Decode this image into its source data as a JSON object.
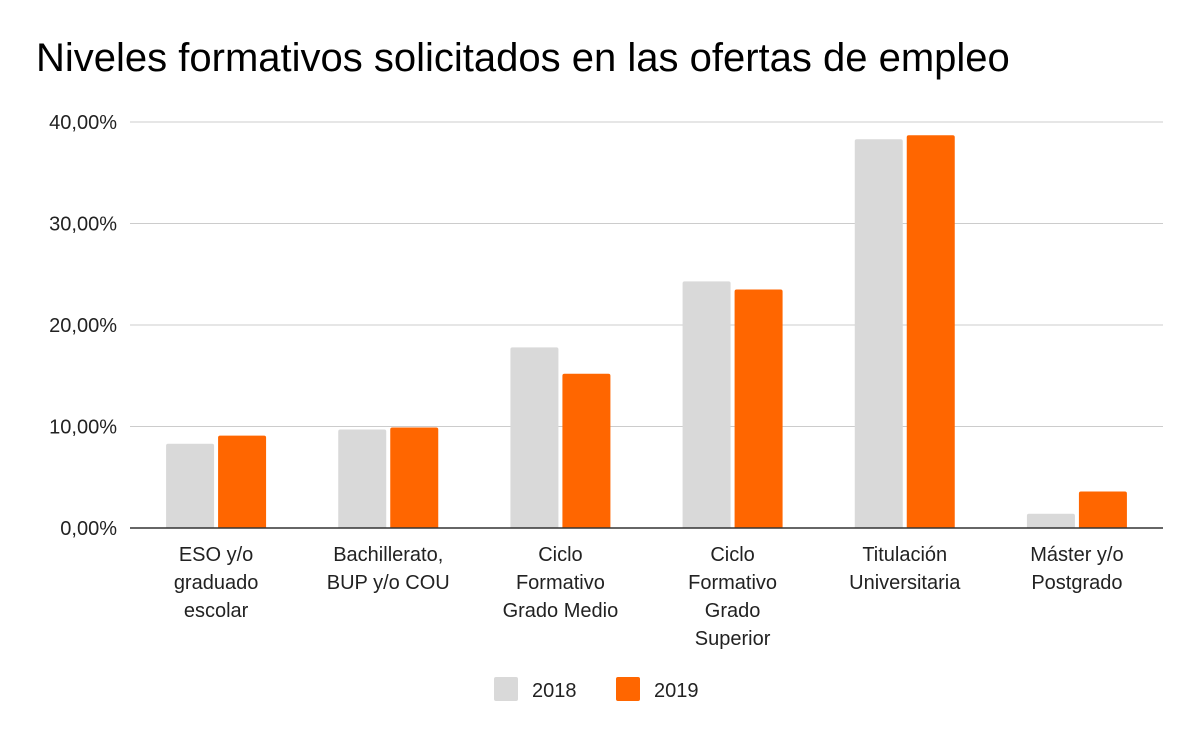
{
  "chart_data": {
    "type": "bar",
    "title": "Niveles formativos solicitados en las ofertas de empleo",
    "xlabel": "",
    "ylabel": "",
    "ylim": [
      0,
      40
    ],
    "yticks": [
      0,
      10,
      20,
      30,
      40
    ],
    "ytick_labels": [
      "0,00%",
      "10,00%",
      "20,00%",
      "30,00%",
      "40,00%"
    ],
    "grid": true,
    "legend_position": "bottom",
    "categories": [
      [
        "ESO y/o",
        "graduado",
        "escolar"
      ],
      [
        "Bachillerato,",
        "BUP y/o COU"
      ],
      [
        "Ciclo",
        "Formativo",
        "Grado Medio"
      ],
      [
        "Ciclo",
        "Formativo",
        "Grado",
        "Superior"
      ],
      [
        "Titulación",
        "Universitaria"
      ],
      [
        "Máster y/o",
        "Postgrado"
      ]
    ],
    "series": [
      {
        "name": "2018",
        "color": "#d9d9d9",
        "values": [
          8.3,
          9.7,
          17.8,
          24.3,
          38.3,
          1.4
        ]
      },
      {
        "name": "2019",
        "color": "#ff6600",
        "values": [
          9.1,
          9.9,
          15.2,
          23.5,
          38.7,
          3.6
        ]
      }
    ]
  }
}
